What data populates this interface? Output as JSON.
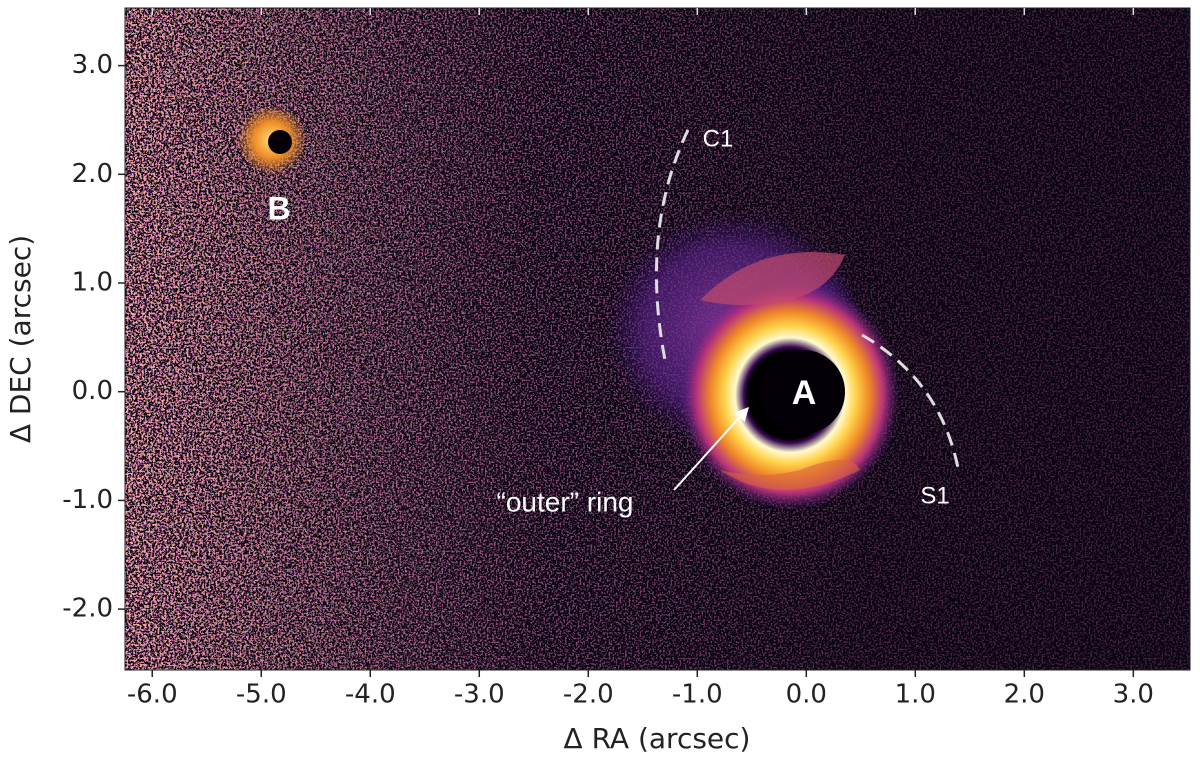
{
  "chart_data": {
    "type": "image",
    "xlabel": "Δ RA (arcsec)",
    "ylabel": "Δ DEC (arcsec)",
    "xlim": [
      -6.25,
      3.52
    ],
    "ylim": [
      -2.56,
      3.53
    ],
    "xticks": [
      {
        "value": -6,
        "label": "-6.0"
      },
      {
        "value": -5,
        "label": "-5.0"
      },
      {
        "value": -4,
        "label": "-4.0"
      },
      {
        "value": -3,
        "label": "-3.0"
      },
      {
        "value": -2,
        "label": "-2.0"
      },
      {
        "value": -1,
        "label": "-1.0"
      },
      {
        "value": 0,
        "label": "0.0"
      },
      {
        "value": 1,
        "label": "1.0"
      },
      {
        "value": 2,
        "label": "2.0"
      },
      {
        "value": 3,
        "label": "3.0"
      }
    ],
    "yticks": [
      {
        "value": -2,
        "label": "-2.0"
      },
      {
        "value": -1,
        "label": "-1.0"
      },
      {
        "value": 0,
        "label": "0.0"
      },
      {
        "value": 1,
        "label": "1.0"
      },
      {
        "value": 2,
        "label": "2.0"
      },
      {
        "value": 3,
        "label": "3.0"
      }
    ],
    "annotations": [
      "A",
      "B",
      "C1",
      "S1",
      "“outer” ring"
    ]
  }
}
